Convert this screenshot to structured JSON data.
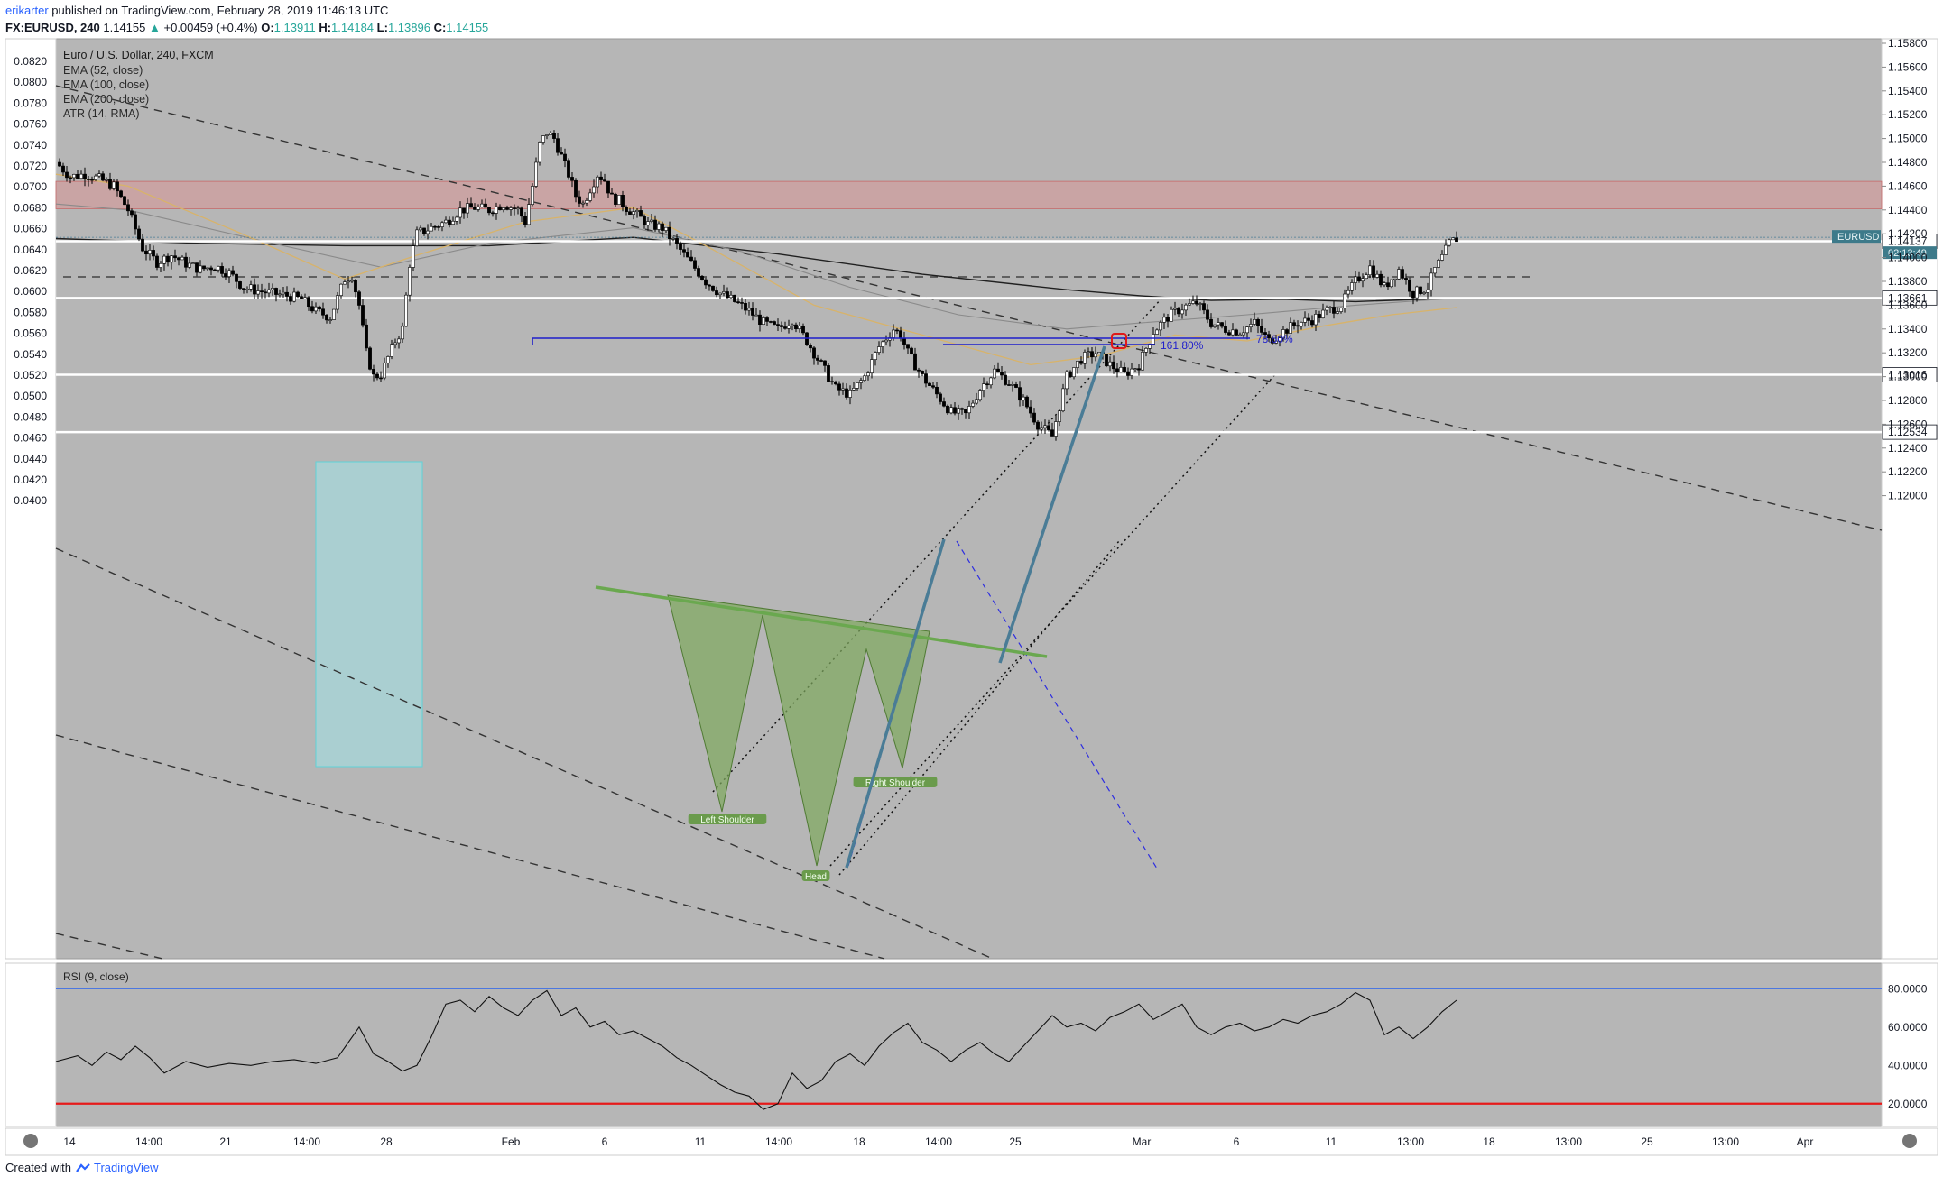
{
  "header": {
    "user": "erikarter",
    "published_text": " published on TradingView.com, February 28, 2019 11:46:13 UTC",
    "symbol": "FX:EURUSD, 240",
    "last": "1.14155",
    "arrow": "▲",
    "change": "+0.00459 (+0.4%)",
    "o_label": "O:",
    "o": "1.13911",
    "h_label": "H:",
    "h": "1.14184",
    "l_label": "L:",
    "l": "1.13896",
    "c_label": "C:",
    "c": "1.14155"
  },
  "legend": {
    "title": "Euro / U.S. Dollar, 240, FXCM",
    "items": [
      "EMA (52, close)",
      "EMA (100, close)",
      "EMA (200, close)",
      "ATR (14, RMA)"
    ]
  },
  "colors": {
    "pane_bg": "#b6b6b6",
    "up": "#ffffff",
    "down": "#000000",
    "zone": "#cf9e9e",
    "box": "#a8d3d6",
    "pattern": "#7faa5e",
    "neckline": "#6aa84f",
    "trend_blue": "#4a7c96",
    "fib_blue": "#1f1fcc",
    "rsi_upper": "#3d6ee6",
    "rsi_lower": "#e61a1a",
    "ema52": "#d8b36a",
    "ema100": "#8a8a8a",
    "ema200": "#202020"
  },
  "chart_data": {
    "type": "candlestick",
    "right_axis_ticks": [
      "1.15800",
      "1.15600",
      "1.15400",
      "1.15200",
      "1.15000",
      "1.14800",
      "1.14600",
      "1.14400",
      "1.14200",
      "1.14000",
      "1.13800",
      "1.13600",
      "1.13400",
      "1.13200",
      "1.13000",
      "1.12800",
      "1.12600",
      "1.12400",
      "1.12200",
      "1.12000"
    ],
    "left_axis_ticks": [
      "0.0820",
      "0.0800",
      "0.0780",
      "0.0760",
      "0.0740",
      "0.0720",
      "0.0700",
      "0.0680",
      "0.0660",
      "0.0640",
      "0.0620",
      "0.0600",
      "0.0580",
      "0.0560",
      "0.0540",
      "0.0520",
      "0.0500",
      "0.0480",
      "0.0460",
      "0.0440",
      "0.0420",
      "0.0400"
    ],
    "right_ylim": [
      1.119,
      1.1587
    ],
    "x_ticks": [
      "14",
      "14:00",
      "21",
      "14:00",
      "28",
      "Feb",
      "6",
      "11",
      "14:00",
      "18",
      "14:00",
      "25",
      "Mar",
      "6",
      "11",
      "13:00",
      "18",
      "13:00",
      "25",
      "13:00",
      "Apr"
    ],
    "horizontal_levels": [
      {
        "label": "1.14137",
        "value": 1.14137
      },
      {
        "label": "1.13661",
        "value": 1.13661
      },
      {
        "label": "1.13016",
        "value": 1.13016
      },
      {
        "label": "1.12534",
        "value": 1.12534
      }
    ],
    "price_tag": {
      "symbol": "EURUSD",
      "value": "1.14155",
      "countdown": "02:13:49"
    },
    "resistance_zone": [
      1.1441,
      1.1464
    ],
    "fib_labels": [
      "161.80%",
      "78.60%"
    ],
    "pattern_labels": [
      "Left Shoulder",
      "Head",
      "Right Shoulder"
    ],
    "close_path": [
      [
        0,
        1.148
      ],
      [
        4,
        1.1468
      ],
      [
        8,
        1.147
      ],
      [
        12,
        1.1466
      ],
      [
        16,
        1.146
      ],
      [
        20,
        1.144
      ],
      [
        24,
        1.1408
      ],
      [
        28,
        1.1396
      ],
      [
        32,
        1.1402
      ],
      [
        36,
        1.1395
      ],
      [
        40,
        1.139
      ],
      [
        44,
        1.1393
      ],
      [
        48,
        1.1387
      ],
      [
        52,
        1.1375
      ],
      [
        56,
        1.1372
      ],
      [
        60,
        1.137
      ],
      [
        64,
        1.1368
      ],
      [
        68,
        1.1365
      ],
      [
        72,
        1.1355
      ],
      [
        76,
        1.135
      ],
      [
        80,
        1.1382
      ],
      [
        82,
        1.1385
      ],
      [
        84,
        1.136
      ],
      [
        86,
        1.132
      ],
      [
        88,
        1.13
      ],
      [
        90,
        1.1302
      ],
      [
        94,
        1.133
      ],
      [
        96,
        1.134
      ],
      [
        98,
        1.1395
      ],
      [
        100,
        1.142
      ],
      [
        104,
        1.1425
      ],
      [
        108,
        1.143
      ],
      [
        112,
        1.144
      ],
      [
        116,
        1.1442
      ],
      [
        120,
        1.144
      ],
      [
        124,
        1.1445
      ],
      [
        128,
        1.144
      ],
      [
        130,
        1.143
      ],
      [
        132,
        1.146
      ],
      [
        134,
        1.1495
      ],
      [
        136,
        1.1505
      ],
      [
        138,
        1.15
      ],
      [
        140,
        1.1485
      ],
      [
        142,
        1.147
      ],
      [
        144,
        1.1452
      ],
      [
        146,
        1.1445
      ],
      [
        148,
        1.1458
      ],
      [
        150,
        1.147
      ],
      [
        152,
        1.1465
      ],
      [
        154,
        1.145
      ],
      [
        156,
        1.1448
      ],
      [
        158,
        1.1442
      ],
      [
        160,
        1.1438
      ],
      [
        164,
        1.1428
      ],
      [
        168,
        1.1425
      ],
      [
        172,
        1.141
      ],
      [
        176,
        1.1395
      ],
      [
        180,
        1.138
      ],
      [
        184,
        1.137
      ],
      [
        188,
        1.1363
      ],
      [
        192,
        1.1355
      ],
      [
        196,
        1.1345
      ],
      [
        200,
        1.134
      ],
      [
        204,
        1.1348
      ],
      [
        208,
        1.133
      ],
      [
        212,
        1.131
      ],
      [
        216,
        1.129
      ],
      [
        220,
        1.1285
      ],
      [
        224,
        1.13
      ],
      [
        228,
        1.1325
      ],
      [
        232,
        1.134
      ],
      [
        234,
        1.1335
      ],
      [
        236,
        1.132
      ],
      [
        240,
        1.13
      ],
      [
        244,
        1.1285
      ],
      [
        248,
        1.127
      ],
      [
        252,
        1.1268
      ],
      [
        256,
        1.129
      ],
      [
        260,
        1.1305
      ],
      [
        264,
        1.1295
      ],
      [
        268,
        1.128
      ],
      [
        272,
        1.126
      ],
      [
        276,
        1.125
      ],
      [
        278,
        1.1275
      ],
      [
        280,
        1.13
      ],
      [
        284,
        1.1315
      ],
      [
        288,
        1.132
      ],
      [
        292,
        1.131
      ],
      [
        296,
        1.1302
      ],
      [
        300,
        1.131
      ],
      [
        304,
        1.1338
      ],
      [
        308,
        1.135
      ],
      [
        312,
        1.1358
      ],
      [
        316,
        1.1362
      ],
      [
        320,
        1.1345
      ],
      [
        324,
        1.134
      ],
      [
        328,
        1.1338
      ],
      [
        332,
        1.1345
      ],
      [
        336,
        1.133
      ],
      [
        340,
        1.1338
      ],
      [
        344,
        1.1345
      ],
      [
        348,
        1.1348
      ],
      [
        352,
        1.1355
      ],
      [
        356,
        1.136
      ],
      [
        360,
        1.138
      ],
      [
        364,
        1.1392
      ],
      [
        368,
        1.1375
      ],
      [
        372,
        1.139
      ],
      [
        376,
        1.137
      ],
      [
        380,
        1.1375
      ],
      [
        382,
        1.139
      ],
      [
        384,
        1.14
      ],
      [
        386,
        1.1412
      ],
      [
        388,
        1.1416
      ]
    ],
    "rsi": {
      "title": "RSI (9, close)",
      "ticks": [
        "80.0000",
        "60.0000",
        "40.0000",
        "20.0000"
      ],
      "upper": 80,
      "lower": 20,
      "ylim": [
        10,
        90
      ],
      "path": [
        [
          0,
          42
        ],
        [
          6,
          45
        ],
        [
          10,
          40
        ],
        [
          14,
          47
        ],
        [
          18,
          43
        ],
        [
          22,
          50
        ],
        [
          26,
          44
        ],
        [
          30,
          36
        ],
        [
          36,
          42
        ],
        [
          42,
          39
        ],
        [
          48,
          41
        ],
        [
          54,
          40
        ],
        [
          60,
          42
        ],
        [
          66,
          43
        ],
        [
          72,
          41
        ],
        [
          78,
          44
        ],
        [
          84,
          60
        ],
        [
          88,
          46
        ],
        [
          92,
          42
        ],
        [
          96,
          37
        ],
        [
          100,
          40
        ],
        [
          104,
          55
        ],
        [
          108,
          72
        ],
        [
          112,
          74
        ],
        [
          116,
          68
        ],
        [
          120,
          76
        ],
        [
          124,
          70
        ],
        [
          128,
          66
        ],
        [
          132,
          74
        ],
        [
          136,
          79
        ],
        [
          140,
          66
        ],
        [
          144,
          70
        ],
        [
          148,
          60
        ],
        [
          152,
          63
        ],
        [
          156,
          56
        ],
        [
          160,
          58
        ],
        [
          164,
          54
        ],
        [
          168,
          50
        ],
        [
          172,
          44
        ],
        [
          176,
          40
        ],
        [
          180,
          35
        ],
        [
          184,
          30
        ],
        [
          188,
          26
        ],
        [
          192,
          24
        ],
        [
          196,
          17
        ],
        [
          200,
          20
        ],
        [
          204,
          36
        ],
        [
          208,
          28
        ],
        [
          212,
          32
        ],
        [
          216,
          42
        ],
        [
          220,
          46
        ],
        [
          224,
          40
        ],
        [
          228,
          50
        ],
        [
          232,
          57
        ],
        [
          236,
          62
        ],
        [
          240,
          52
        ],
        [
          244,
          48
        ],
        [
          248,
          42
        ],
        [
          252,
          48
        ],
        [
          256,
          52
        ],
        [
          260,
          46
        ],
        [
          264,
          42
        ],
        [
          268,
          50
        ],
        [
          272,
          58
        ],
        [
          276,
          66
        ],
        [
          280,
          60
        ],
        [
          284,
          62
        ],
        [
          288,
          58
        ],
        [
          292,
          65
        ],
        [
          296,
          68
        ],
        [
          300,
          72
        ],
        [
          304,
          64
        ],
        [
          308,
          68
        ],
        [
          312,
          72
        ],
        [
          316,
          60
        ],
        [
          320,
          56
        ],
        [
          324,
          60
        ],
        [
          328,
          62
        ],
        [
          332,
          58
        ],
        [
          336,
          60
        ],
        [
          340,
          64
        ],
        [
          344,
          62
        ],
        [
          348,
          66
        ],
        [
          352,
          68
        ],
        [
          356,
          72
        ],
        [
          360,
          78
        ],
        [
          364,
          74
        ],
        [
          368,
          56
        ],
        [
          372,
          60
        ],
        [
          376,
          54
        ],
        [
          380,
          60
        ],
        [
          384,
          68
        ],
        [
          388,
          74
        ]
      ]
    }
  },
  "footer": {
    "created_with": "Created with",
    "brand": "TradingView"
  }
}
